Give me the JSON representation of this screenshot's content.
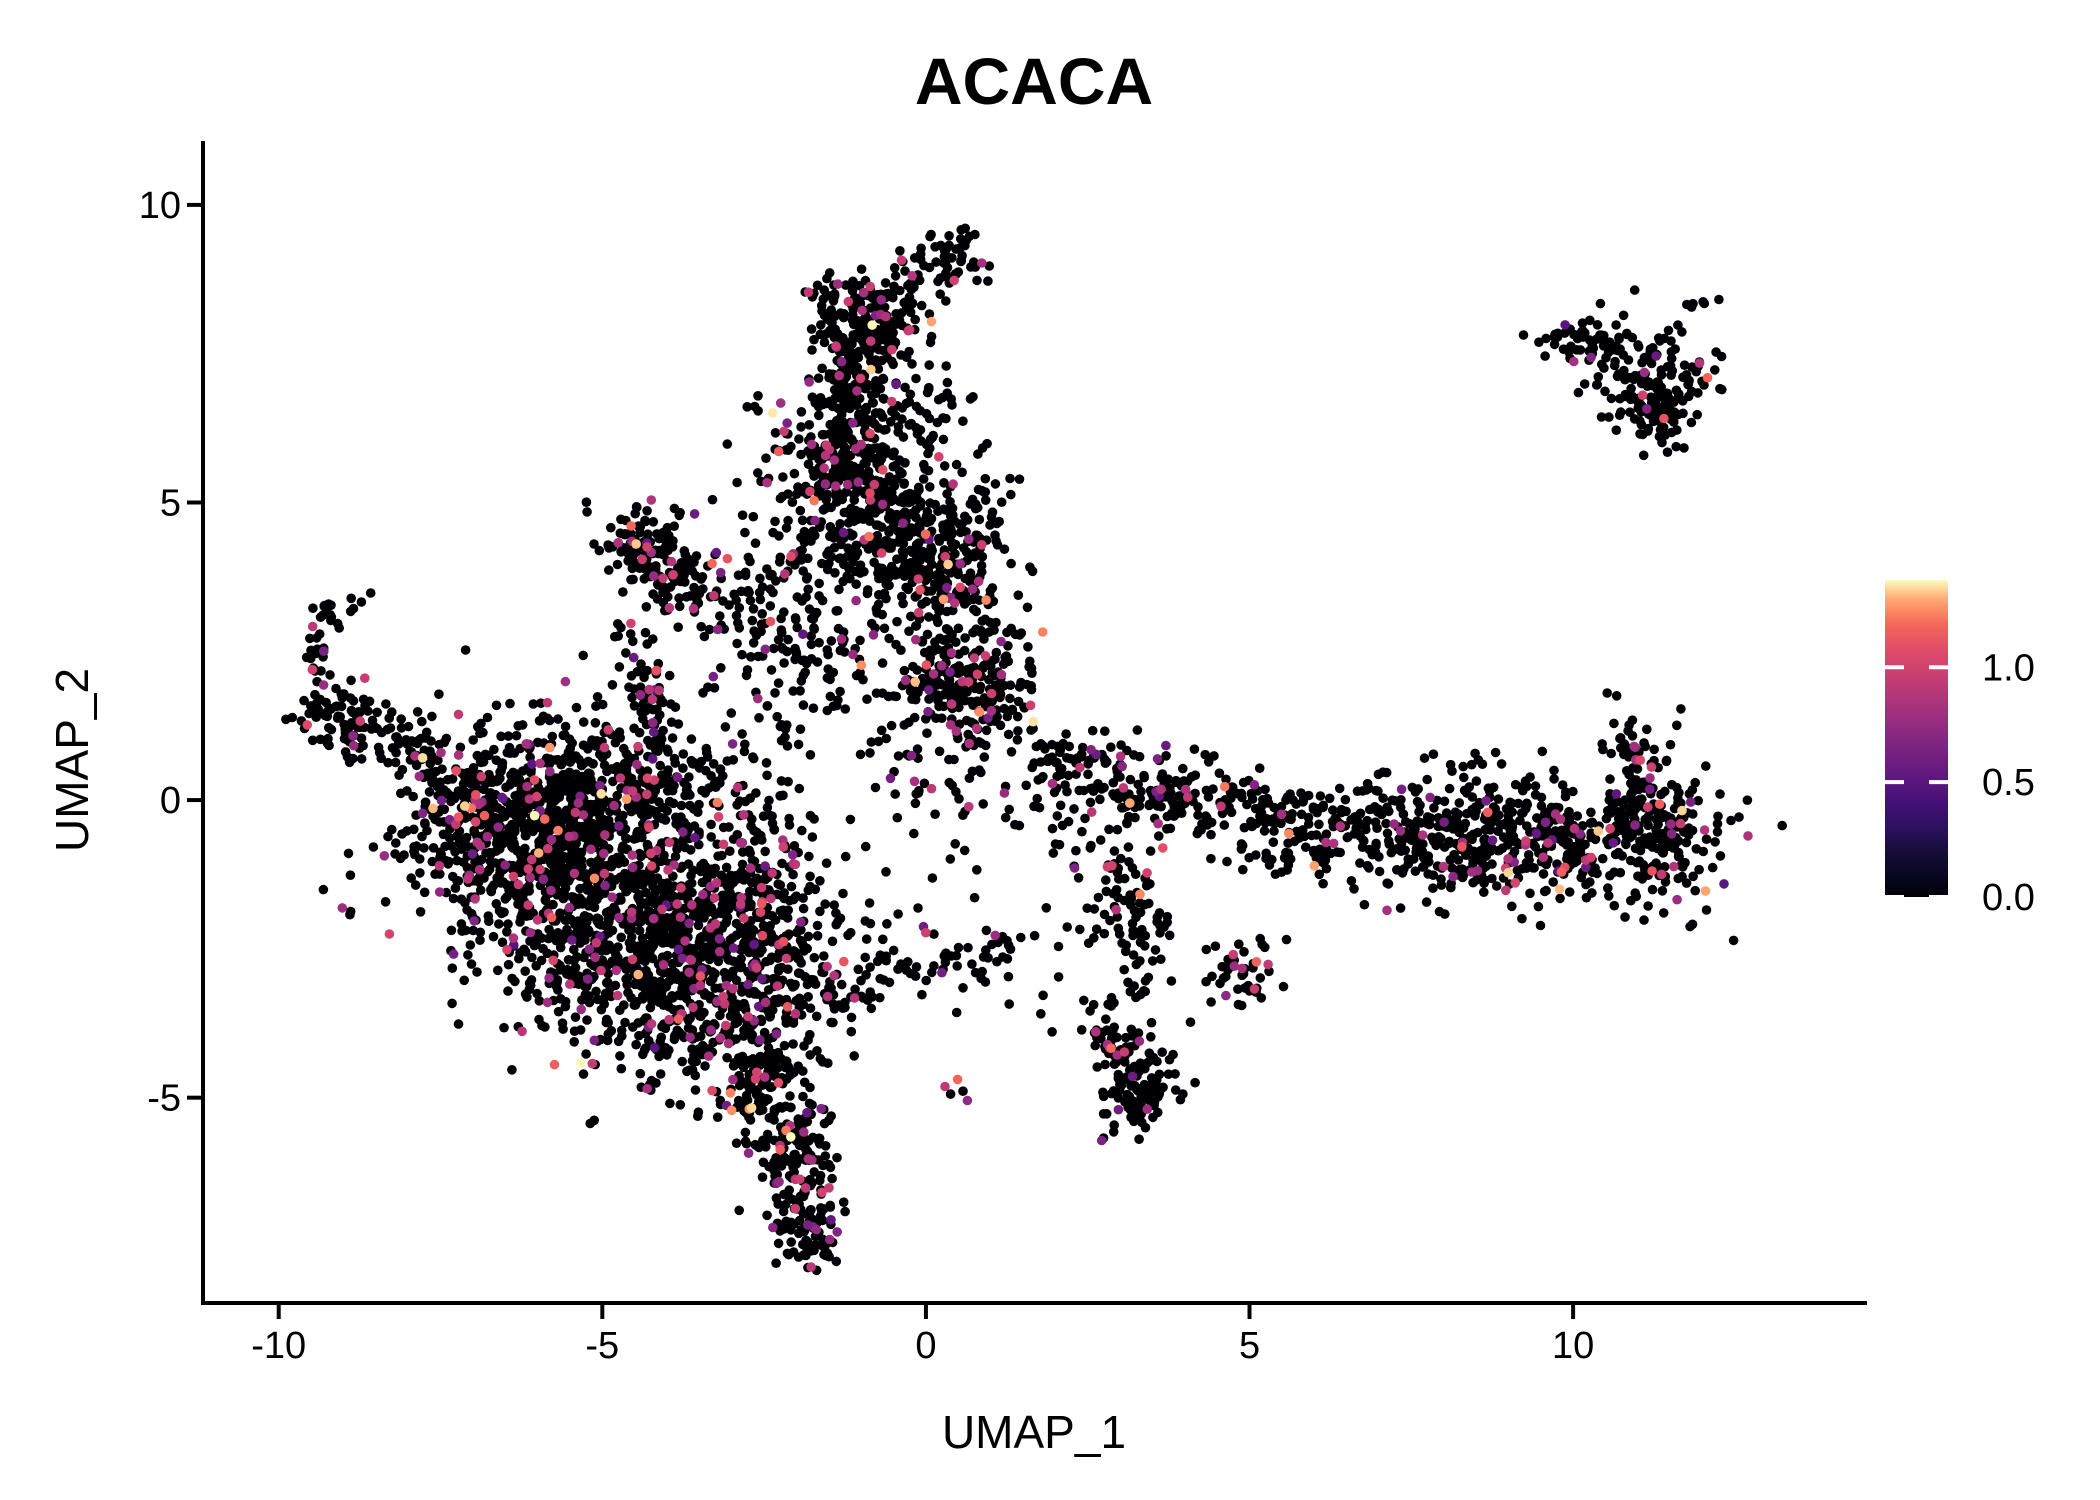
{
  "title": "ACACA",
  "axes": {
    "x": {
      "label": "UMAP_1",
      "ticks": [
        -10,
        -5,
        0,
        5,
        10
      ]
    },
    "y": {
      "label": "UMAP_2",
      "ticks": [
        -5,
        0,
        5,
        10
      ]
    }
  },
  "legend": {
    "ticks": [
      {
        "value": 1.0,
        "label": "1.0"
      },
      {
        "value": 0.5,
        "label": "0.5"
      },
      {
        "value": 0.0,
        "label": "0.0"
      }
    ],
    "vmax": 1.38
  },
  "chart_data": {
    "type": "scatter",
    "title": "ACACA",
    "xlabel": "UMAP_1",
    "ylabel": "UMAP_2",
    "xlim": [
      -11.17,
      14.51
    ],
    "ylim": [
      -8.45,
      11.04
    ],
    "x_ticks": [
      -10,
      -5,
      0,
      5,
      10
    ],
    "y_ticks": [
      -5,
      0,
      5,
      10
    ],
    "grid": false,
    "legend_position": "right",
    "point_radius_px": 4.8,
    "n_points_approx": 6727,
    "seed": 1337,
    "value_max": 1.38,
    "colormap": [
      [
        0.0,
        "#000004"
      ],
      [
        0.07,
        "#0a0722"
      ],
      [
        0.14,
        "#150e37"
      ],
      [
        0.22,
        "#2d1160"
      ],
      [
        0.3,
        "#451077"
      ],
      [
        0.38,
        "#5f187f"
      ],
      [
        0.46,
        "#782281"
      ],
      [
        0.54,
        "#932b80"
      ],
      [
        0.62,
        "#ae347b"
      ],
      [
        0.7,
        "#c93f71"
      ],
      [
        0.78,
        "#e04c67"
      ],
      [
        0.86,
        "#f4685c"
      ],
      [
        0.9,
        "#fb8861"
      ],
      [
        0.94,
        "#fea973"
      ],
      [
        0.97,
        "#fed395"
      ],
      [
        1.0,
        "#fcfdbf"
      ]
    ],
    "expression_buckets": [
      {
        "p": 0.2,
        "min": 0.5,
        "max": 0.75
      },
      {
        "p": 0.6,
        "min": 0.75,
        "max": 1.0
      },
      {
        "p": 0.15,
        "min": 1.0,
        "max": 1.3
      },
      {
        "p": 0.05,
        "min": 1.3,
        "max": 1.38
      }
    ],
    "clusters": [
      {
        "name": "left-arm-hook-top",
        "x": -9.05,
        "y": 3.15,
        "sx": 0.25,
        "sy": 0.14,
        "rot": 0,
        "n": 14,
        "cf": 0.18
      },
      {
        "name": "left-arm-hook-side",
        "x": -9.38,
        "y": 2.6,
        "sx": 0.14,
        "sy": 0.32,
        "rot": 0,
        "n": 22,
        "cf": 0.08
      },
      {
        "name": "left-arm-clump",
        "x": -9.05,
        "y": 1.4,
        "sx": 0.38,
        "sy": 0.3,
        "rot": 0,
        "n": 75,
        "cf": 0.06
      },
      {
        "name": "left-arm-chain",
        "x": -8.15,
        "y": 0.95,
        "sx": 0.5,
        "sy": 0.26,
        "rot": -20,
        "n": 55,
        "cf": 0.06
      },
      {
        "name": "left-arm-link",
        "x": -7.25,
        "y": 0.4,
        "sx": 0.45,
        "sy": 0.22,
        "rot": -15,
        "n": 40,
        "cf": 0.05
      },
      {
        "name": "lone-dot-west",
        "x": -6.9,
        "y": 1.25,
        "sx": 0.06,
        "sy": 0.06,
        "rot": 0,
        "n": 2,
        "cf": 0
      },
      {
        "name": "main-core-left",
        "x": -5.6,
        "y": -0.9,
        "sx": 1.15,
        "sy": 1.0,
        "rot": 0,
        "n": 700,
        "cf": 0.1
      },
      {
        "name": "main-core-lower",
        "x": -4.3,
        "y": -2.4,
        "sx": 1.0,
        "sy": 0.95,
        "rot": 0,
        "n": 650,
        "cf": 0.1
      },
      {
        "name": "main-west-lobe",
        "x": -6.3,
        "y": -0.2,
        "sx": 0.75,
        "sy": 0.55,
        "rot": 0,
        "n": 230,
        "cf": 0.08
      },
      {
        "name": "main-south-lobe",
        "x": -3.4,
        "y": -3.5,
        "sx": 0.65,
        "sy": 0.75,
        "rot": 0,
        "n": 220,
        "cf": 0.1
      },
      {
        "name": "main-east-lobe",
        "x": -2.9,
        "y": -1.4,
        "sx": 0.6,
        "sy": 0.9,
        "rot": 0,
        "n": 220,
        "cf": 0.1
      },
      {
        "name": "main-north-edge",
        "x": -4.9,
        "y": 0.2,
        "sx": 0.9,
        "sy": 0.45,
        "rot": 0,
        "n": 170,
        "cf": 0.08
      },
      {
        "name": "main-tail-upper",
        "x": -2.45,
        "y": -4.9,
        "sx": 0.4,
        "sy": 0.65,
        "rot": 0,
        "n": 150,
        "cf": 0.1
      },
      {
        "name": "main-tail-lower",
        "x": -1.95,
        "y": -6.3,
        "sx": 0.3,
        "sy": 0.65,
        "rot": 0,
        "n": 150,
        "cf": 0.09
      },
      {
        "name": "main-tail-tip",
        "x": -1.7,
        "y": -7.2,
        "sx": 0.25,
        "sy": 0.28,
        "rot": 0,
        "n": 50,
        "cf": 0.08
      },
      {
        "name": "main-east-fringe",
        "x": -2.2,
        "y": -2.7,
        "sx": 0.45,
        "sy": 0.8,
        "rot": 0,
        "n": 120,
        "cf": 0.1
      },
      {
        "name": "main-north-sparse",
        "x": -5.2,
        "y": 0.9,
        "sx": 1.1,
        "sy": 0.4,
        "rot": 0,
        "n": 60,
        "cf": 0.06
      },
      {
        "name": "main-west-sparse",
        "x": -7.2,
        "y": -0.8,
        "sx": 0.5,
        "sy": 0.6,
        "rot": 0,
        "n": 55,
        "cf": 0.05
      },
      {
        "name": "main-se-sparse",
        "x": -1.3,
        "y": -2.2,
        "sx": 0.35,
        "sy": 0.5,
        "rot": 0,
        "n": 25,
        "cf": 0.08
      },
      {
        "name": "column-head",
        "x": -0.85,
        "y": 8.1,
        "sx": 0.45,
        "sy": 0.45,
        "rot": 0,
        "n": 200,
        "cf": 0.07
      },
      {
        "name": "column-top-knob",
        "x": 0.4,
        "y": 9.1,
        "sx": 0.3,
        "sy": 0.26,
        "rot": 0,
        "n": 55,
        "cf": 0.05
      },
      {
        "name": "column-knob-link",
        "x": -0.2,
        "y": 8.75,
        "sx": 0.3,
        "sy": 0.18,
        "rot": 0,
        "n": 12,
        "cf": 0
      },
      {
        "name": "column-upper",
        "x": -1.1,
        "y": 6.9,
        "sx": 0.4,
        "sy": 0.55,
        "rot": 0,
        "n": 140,
        "cf": 0.07
      },
      {
        "name": "column-mid",
        "x": -1.15,
        "y": 5.6,
        "sx": 0.65,
        "sy": 0.65,
        "rot": 0,
        "n": 330,
        "cf": 0.08
      },
      {
        "name": "column-lower",
        "x": -0.5,
        "y": 4.5,
        "sx": 0.55,
        "sy": 0.55,
        "rot": 0,
        "n": 200,
        "cf": 0.08
      },
      {
        "name": "column-east-knot",
        "x": 0.35,
        "y": 3.9,
        "sx": 0.5,
        "sy": 0.6,
        "rot": 0,
        "n": 170,
        "cf": 0.09
      },
      {
        "name": "column-south-knot",
        "x": 0.6,
        "y": 2.0,
        "sx": 0.5,
        "sy": 0.55,
        "rot": 0,
        "n": 250,
        "cf": 0.14
      },
      {
        "name": "column-west-sparse",
        "x": -1.5,
        "y": 2.6,
        "sx": 0.9,
        "sy": 0.9,
        "rot": 0,
        "n": 160,
        "cf": 0.08
      },
      {
        "name": "column-east-dots",
        "x": 1.0,
        "y": 5.2,
        "sx": 0.3,
        "sy": 0.4,
        "rot": 0,
        "n": 18,
        "cf": 0.05
      },
      {
        "name": "column-east-trail",
        "x": 0.2,
        "y": 6.6,
        "sx": 0.3,
        "sy": 0.5,
        "rot": 0,
        "n": 25,
        "cf": 0.05
      },
      {
        "name": "column-south-sparse",
        "x": 0.0,
        "y": 0.6,
        "sx": 0.7,
        "sy": 0.7,
        "rot": 0,
        "n": 50,
        "cf": 0.08
      },
      {
        "name": "wedge-head",
        "x": -4.35,
        "y": 4.35,
        "sx": 0.33,
        "sy": 0.3,
        "rot": 0,
        "n": 90,
        "cf": 0.1
      },
      {
        "name": "wedge-point",
        "x": -3.75,
        "y": 3.65,
        "sx": 0.4,
        "sy": 0.35,
        "rot": 0,
        "n": 85,
        "cf": 0.12
      },
      {
        "name": "wedge-tail",
        "x": -4.3,
        "y": 1.9,
        "sx": 0.17,
        "sy": 0.6,
        "rot": 12,
        "n": 65,
        "cf": 0.09
      },
      {
        "name": "wedge-east-sparse",
        "x": -2.6,
        "y": 3.3,
        "sx": 0.5,
        "sy": 0.5,
        "rot": 0,
        "n": 45,
        "cf": 0.07
      },
      {
        "name": "wedge-ne-sparse",
        "x": -1.9,
        "y": 4.2,
        "sx": 0.5,
        "sy": 0.5,
        "rot": 0,
        "n": 35,
        "cf": 0.06
      },
      {
        "name": "band-east",
        "x": 9.4,
        "y": -0.75,
        "sx": 1.15,
        "sy": 0.5,
        "rot": 0,
        "n": 380,
        "cf": 0.1
      },
      {
        "name": "band-end",
        "x": 11.3,
        "y": -0.55,
        "sx": 0.45,
        "sy": 0.6,
        "rot": 0,
        "n": 160,
        "cf": 0.11
      },
      {
        "name": "band-mid",
        "x": 7.4,
        "y": -0.4,
        "sx": 0.9,
        "sy": 0.33,
        "rot": 0,
        "n": 130,
        "cf": 0.08
      },
      {
        "name": "band-west",
        "x": 5.2,
        "y": -0.15,
        "sx": 0.95,
        "sy": 0.3,
        "rot": -8,
        "n": 120,
        "cf": 0.08
      },
      {
        "name": "band-tip",
        "x": 3.5,
        "y": 0.2,
        "sx": 0.6,
        "sy": 0.35,
        "rot": -20,
        "n": 100,
        "cf": 0.09
      },
      {
        "name": "band-chain",
        "x": 2.1,
        "y": 0.75,
        "sx": 0.4,
        "sy": 0.22,
        "rot": -25,
        "n": 45,
        "cf": 0.07
      },
      {
        "name": "band-up-branch",
        "x": 11.0,
        "y": 0.45,
        "sx": 0.17,
        "sy": 0.55,
        "rot": 8,
        "n": 55,
        "cf": 0.18
      },
      {
        "name": "band-above-sparse",
        "x": 8.3,
        "y": 0.35,
        "sx": 0.8,
        "sy": 0.25,
        "rot": 0,
        "n": 30,
        "cf": 0.06
      },
      {
        "name": "band-down-arm",
        "x": 3.0,
        "y": -1.1,
        "sx": 0.28,
        "sy": 0.65,
        "rot": -15,
        "n": 55,
        "cf": 0.1
      },
      {
        "name": "band-down-chain",
        "x": 3.35,
        "y": -2.4,
        "sx": 0.2,
        "sy": 0.5,
        "rot": 0,
        "n": 45,
        "cf": 0.1
      },
      {
        "name": "band-knot",
        "x": 4.95,
        "y": -2.9,
        "sx": 0.25,
        "sy": 0.3,
        "rot": 0,
        "n": 45,
        "cf": 0.13
      },
      {
        "name": "band-gap-sparse",
        "x": 2.2,
        "y": -0.2,
        "sx": 0.45,
        "sy": 0.4,
        "rot": 0,
        "n": 30,
        "cf": 0.07
      },
      {
        "name": "band-south-edge",
        "x": 6.4,
        "y": -1.0,
        "sx": 0.9,
        "sy": 0.3,
        "rot": 0,
        "n": 60,
        "cf": 0.08
      },
      {
        "name": "topright-spray",
        "x": 10.6,
        "y": 7.6,
        "sx": 0.45,
        "sy": 0.3,
        "rot": 0,
        "n": 70,
        "cf": 0.07
      },
      {
        "name": "topright-core",
        "x": 11.25,
        "y": 6.9,
        "sx": 0.4,
        "sy": 0.45,
        "rot": 0,
        "n": 110,
        "cf": 0.06
      },
      {
        "name": "topright-tip",
        "x": 11.4,
        "y": 6.5,
        "sx": 0.2,
        "sy": 0.2,
        "rot": 0,
        "n": 45,
        "cf": 0.04
      },
      {
        "name": "topright-west-line",
        "x": 9.75,
        "y": 7.85,
        "sx": 0.3,
        "sy": 0.1,
        "rot": 0,
        "n": 14,
        "cf": 0.08
      },
      {
        "name": "topright-outliers",
        "x": 11.95,
        "y": 8.4,
        "sx": 0.15,
        "sy": 0.08,
        "rot": 0,
        "n": 6,
        "cf": 0
      },
      {
        "name": "topright-east",
        "x": 11.9,
        "y": 7.3,
        "sx": 0.25,
        "sy": 0.3,
        "rot": 0,
        "n": 12,
        "cf": 0.08
      },
      {
        "name": "bottom-blob-upper",
        "x": 2.95,
        "y": -4.2,
        "sx": 0.2,
        "sy": 0.3,
        "rot": 0,
        "n": 45,
        "cf": 0.08
      },
      {
        "name": "bottom-blob-lower",
        "x": 3.3,
        "y": -4.9,
        "sx": 0.3,
        "sy": 0.45,
        "rot": -30,
        "n": 90,
        "cf": 0.06
      },
      {
        "name": "bottom-blob-trail",
        "x": 2.8,
        "y": -3.7,
        "sx": 0.12,
        "sy": 0.25,
        "rot": 0,
        "n": 15,
        "cf": 0.1
      },
      {
        "name": "south-arc",
        "x": 0.3,
        "y": -2.7,
        "sx": 0.85,
        "sy": 0.22,
        "rot": 8,
        "n": 55,
        "cf": 0.05
      },
      {
        "name": "south-arc-end",
        "x": -1.15,
        "y": -3.25,
        "sx": 0.3,
        "sy": 0.25,
        "rot": 0,
        "n": 25,
        "cf": 0.06
      },
      {
        "name": "mini-pair",
        "x": 0.5,
        "y": -4.85,
        "sx": 0.14,
        "sy": 0.08,
        "rot": -25,
        "n": 5,
        "cf": 0.5
      },
      {
        "name": "mid-sparse",
        "x": 1.3,
        "y": -1.3,
        "sx": 1.1,
        "sy": 0.9,
        "rot": 0,
        "n": 30,
        "cf": 0.05
      },
      {
        "name": "low-sparse",
        "x": 2.4,
        "y": -3.6,
        "sx": 0.8,
        "sy": 0.8,
        "rot": 0,
        "n": 12,
        "cf": 0.05
      }
    ]
  }
}
